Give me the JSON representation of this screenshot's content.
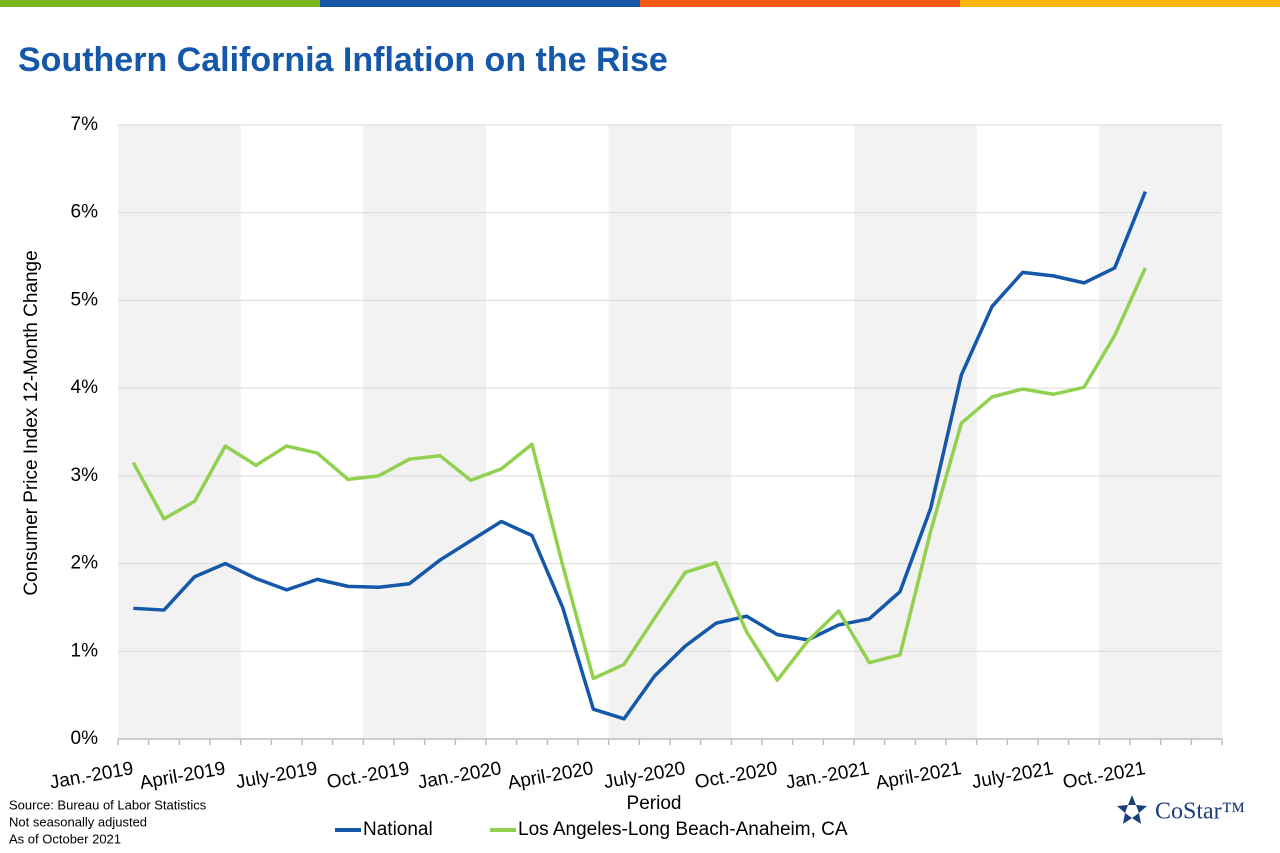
{
  "chart_data": {
    "type": "line",
    "title": "Southern California Inflation on the Rise",
    "y_label": "Consumer Price Index 12-Month Change",
    "x_label": "Period",
    "categories": [
      "Jan.-2019",
      null,
      null,
      "April-2019",
      null,
      null,
      "July-2019",
      null,
      null,
      "Oct.-2019",
      null,
      null,
      "Jan.-2020",
      null,
      null,
      "April-2020",
      null,
      null,
      "July-2020",
      null,
      null,
      "Oct.-2020",
      null,
      null,
      "Jan.-2021",
      null,
      null,
      "April-2021",
      null,
      null,
      "July-2021",
      null,
      null,
      "Oct.-2021",
      null,
      null
    ],
    "series": [
      {
        "name": "National",
        "color": "#1557a8",
        "values": [
          1.49,
          1.47,
          1.85,
          2.0,
          1.83,
          1.7,
          1.82,
          1.74,
          1.73,
          1.77,
          2.04,
          2.26,
          2.48,
          2.32,
          1.5,
          0.34,
          0.23,
          0.72,
          1.06,
          1.32,
          1.4,
          1.19,
          1.13,
          1.3,
          1.37,
          1.68,
          2.63,
          4.15,
          4.93,
          5.32,
          5.28,
          5.2,
          5.37,
          6.24,
          null,
          null
        ]
      },
      {
        "name": "Los Angeles-Long Beach-Anaheim, CA",
        "color": "#92d050",
        "values": [
          3.15,
          2.51,
          2.71,
          3.34,
          3.12,
          3.34,
          3.26,
          2.96,
          3.0,
          3.19,
          3.23,
          2.95,
          3.08,
          3.36,
          1.98,
          0.69,
          0.85,
          1.38,
          1.9,
          2.01,
          1.22,
          0.67,
          1.12,
          1.46,
          0.87,
          0.96,
          2.37,
          3.6,
          3.9,
          3.99,
          3.93,
          4.01,
          4.6,
          5.37,
          null,
          null
        ]
      }
    ],
    "ylim": [
      0,
      7
    ],
    "yticks": [
      {
        "value": 0,
        "label": "0%"
      },
      {
        "value": 1,
        "label": "1%"
      },
      {
        "value": 2,
        "label": "2%"
      },
      {
        "value": 3,
        "label": "3%"
      },
      {
        "value": 4,
        "label": "4%"
      },
      {
        "value": 5,
        "label": "5%"
      },
      {
        "value": 6,
        "label": "6%"
      },
      {
        "value": 7,
        "label": "7%"
      }
    ],
    "grid": true,
    "legend": "bottom",
    "notes": [
      "Source: Bureau of Labor Statistics",
      "Not seasonally adjusted",
      "As of October 2021"
    ],
    "logo": "CoStar™"
  }
}
